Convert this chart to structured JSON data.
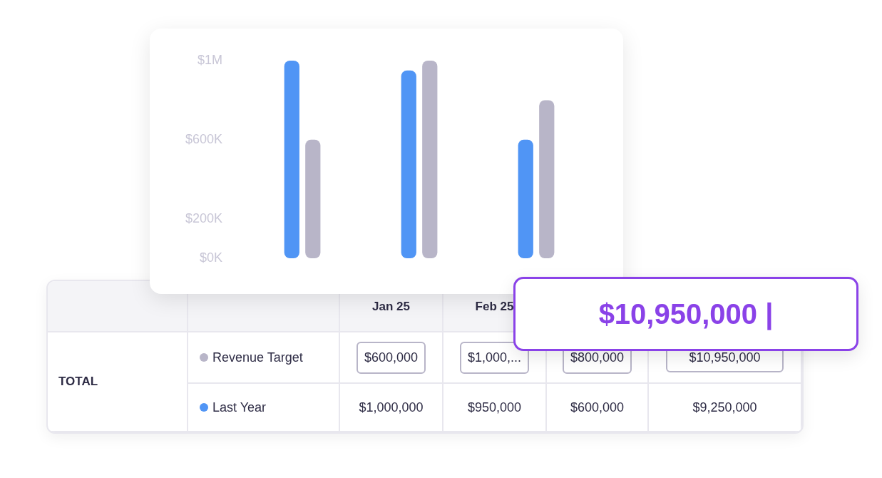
{
  "chart_data": {
    "type": "bar",
    "categories": [
      null,
      null,
      null
    ],
    "series": [
      {
        "name": "Revenue Target",
        "color": "#b8b5c8",
        "values": [
          600000,
          1000000,
          800000
        ]
      },
      {
        "name": "Last Year",
        "color": "#5095f5",
        "values": [
          1000000,
          950000,
          600000
        ]
      }
    ],
    "ylim": [
      0,
      1000000
    ],
    "yticks": [
      {
        "value": 0,
        "label": "$0K"
      },
      {
        "value": 200000,
        "label": "$200K"
      },
      {
        "value": 600000,
        "label": "$600K"
      },
      {
        "value": 1000000,
        "label": "$1M"
      }
    ],
    "grid": false,
    "legend": "bottom left",
    "tick_labels": "y",
    "annotations": [
      "Jan 25",
      "Feb 25",
      "TOTAL",
      "$600,000",
      "$1,000,...",
      "$800,000",
      "$10,950,000",
      "$1,000,000",
      "$950,000",
      "$600,000",
      "$9,250,000",
      "$10,950,000 |"
    ]
  }
}
